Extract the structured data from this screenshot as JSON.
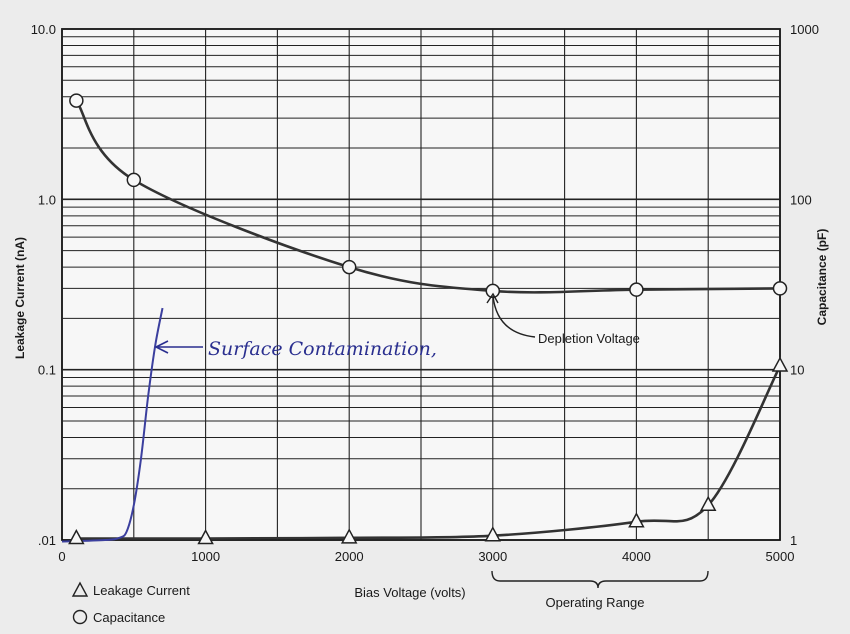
{
  "chart_data": {
    "type": "line",
    "xlabel": "Bias Voltage (volts)",
    "ylabel_left": "Leakage Current (nA)",
    "ylabel_right": "Capacitance (pF)",
    "xlim": [
      0,
      5000
    ],
    "ylim_left": [
      0.01,
      10.0
    ],
    "ylim_right": [
      1,
      1000
    ],
    "yscale": "log",
    "grid": true,
    "x_ticks": [
      "0",
      "1000",
      "2000",
      "3000",
      "4000",
      "5000"
    ],
    "y_ticks_left": [
      {
        "value": 10.0,
        "label": "10.0"
      },
      {
        "value": 1.0,
        "label": "1.0"
      },
      {
        "value": 0.1,
        "label": "0.1"
      },
      {
        "value": 0.01,
        "label": ".01"
      }
    ],
    "y_ticks_right": [
      {
        "value": 1000,
        "label": "1000"
      },
      {
        "value": 100,
        "label": "100"
      },
      {
        "value": 10,
        "label": "10"
      },
      {
        "value": 1,
        "label": "1"
      }
    ],
    "series": [
      {
        "name": "Leakage Current",
        "marker": "triangle",
        "axis": "left",
        "x": [
          100,
          1000,
          2000,
          3000,
          4000,
          4500,
          5000
        ],
        "y": [
          0.0102,
          0.0102,
          0.0103,
          0.0106,
          0.0128,
          0.016,
          0.105
        ]
      },
      {
        "name": "Capacitance",
        "marker": "circle",
        "axis": "right",
        "x": [
          100,
          500,
          2000,
          3000,
          4000,
          5000
        ],
        "y": [
          380,
          130,
          40,
          29,
          29.5,
          30
        ]
      },
      {
        "name": "Surface Contamination",
        "marker": "none",
        "axis": "left",
        "color": "#3b3f9e",
        "x": [
          0,
          300,
          400,
          450,
          500,
          550,
          600,
          650,
          700
        ],
        "y": [
          0.0098,
          0.01,
          0.0103,
          0.0112,
          0.016,
          0.03,
          0.07,
          0.14,
          0.23
        ]
      }
    ],
    "annotations": [
      {
        "text": "Depletion Voltage",
        "x": 3000
      },
      {
        "text": "Operating Range",
        "x_range": [
          3000,
          5000
        ]
      },
      {
        "text": "Surface Contamination,"
      }
    ],
    "legend": [
      {
        "symbol": "triangle",
        "label": "Leakage Current"
      },
      {
        "symbol": "circle",
        "label": "Capacitance"
      }
    ],
    "legend_position": "bottom-left"
  }
}
